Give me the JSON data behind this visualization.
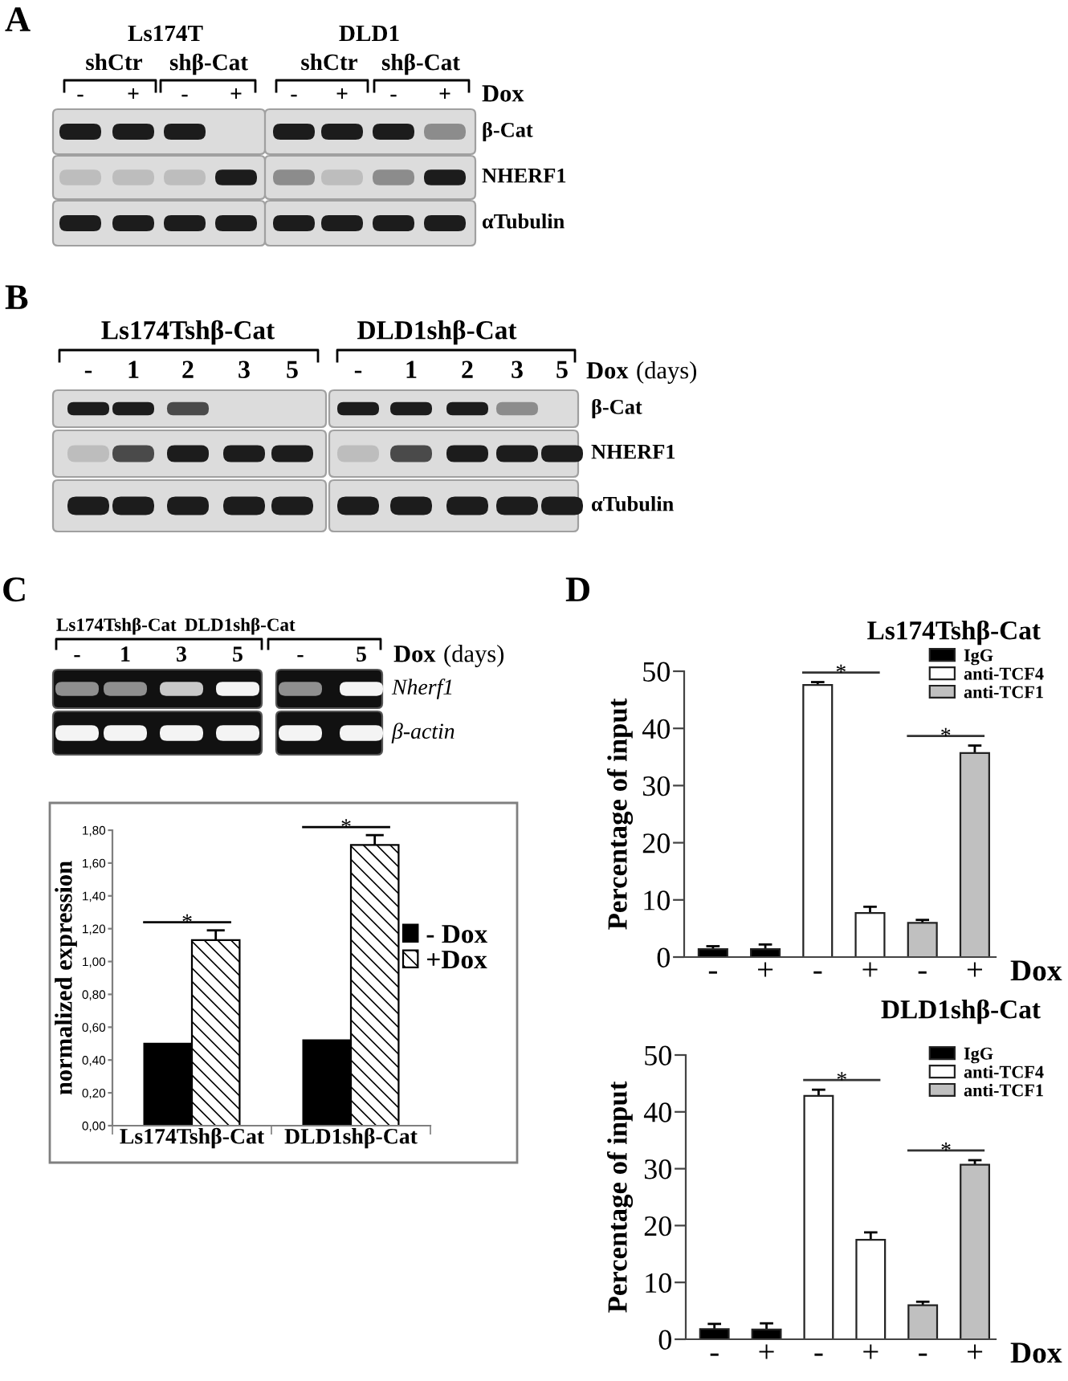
{
  "chart_data": [
    {
      "type": "bar",
      "ylabel": "normalized expression",
      "categories": [
        "Ls174Tshβ-Cat",
        "DLD1shβ-Cat"
      ],
      "series": [
        {
          "name": "- Dox",
          "color": "#000000",
          "values": [
            0.5,
            0.52
          ]
        },
        {
          "name": "+Dox",
          "color": "#000000",
          "values": [
            1.13,
            1.71
          ],
          "errors": [
            0.06,
            0.06
          ]
        }
      ],
      "ylim": [
        0,
        1.8
      ],
      "yticks": [
        {
          "value": 0,
          "label": "0,00"
        },
        {
          "value": 0.2,
          "label": "0,20"
        },
        {
          "value": 0.4,
          "label": "0,40"
        },
        {
          "value": 0.6,
          "label": "0,60"
        },
        {
          "value": 0.8,
          "label": "0,80"
        },
        {
          "value": 1.0,
          "label": "1,00"
        },
        {
          "value": 1.2,
          "label": "1,20"
        },
        {
          "value": 1.4,
          "label": "1,40"
        },
        {
          "value": 1.6,
          "label": "1,60"
        },
        {
          "value": 1.8,
          "label": "1,80"
        }
      ],
      "legend": "right",
      "annotations": [
        "A",
        "Ls174T",
        "DLD1",
        "shCtr",
        "shβ-Cat",
        "shCtr",
        "shβ-Cat",
        "-",
        "+",
        "-",
        "+",
        "-",
        "+",
        "-",
        "+",
        "Dox",
        "β-Cat",
        "NHERF1",
        "αTubulin",
        "B",
        "Ls174Tshβ-Cat",
        "DLD1shβ-Cat",
        "-",
        "1",
        "2",
        "3",
        "5",
        "-",
        "1",
        "2",
        "3",
        "5",
        "Dox",
        "(days)",
        "β-Cat",
        "NHERF1",
        "αTubulin",
        "C",
        "Ls174Tshβ-Cat",
        "DLD1shβ-Cat",
        "-",
        "1",
        "3",
        "5",
        "-",
        "5",
        "Dox",
        "(days)",
        "Nherf1",
        "β-actin",
        "*",
        "*"
      ]
    },
    {
      "type": "bar",
      "title": "Ls174Tshβ-Cat",
      "ylabel": "Percentage of input",
      "xlabel": "Dox",
      "categories": [
        "-",
        "+",
        "-",
        "+",
        "-",
        "+"
      ],
      "series": [
        {
          "name": "IgG",
          "color": "#000000",
          "values": [
            1.4,
            1.4,
            null,
            null,
            null,
            null
          ],
          "errors": [
            0.5,
            0.8,
            null,
            null,
            null,
            null
          ]
        },
        {
          "name": "anti-TCF4",
          "color": "#ffffff",
          "values": [
            null,
            null,
            47.6,
            7.7,
            null,
            null
          ],
          "errors": [
            null,
            null,
            0.5,
            1.1,
            null,
            null
          ]
        },
        {
          "name": "anti-TCF1",
          "color": "#c0c0c0",
          "values": [
            null,
            null,
            null,
            null,
            6.0,
            35.7
          ],
          "errors": [
            null,
            null,
            null,
            null,
            0.5,
            1.3
          ]
        }
      ],
      "ylim": [
        0,
        50
      ],
      "yticks": [
        0,
        10,
        20,
        30,
        40,
        50
      ],
      "legend": "top right",
      "annotations": [
        "D",
        "*",
        "*"
      ]
    },
    {
      "type": "bar",
      "title": "DLD1shβ-Cat",
      "ylabel": "Percentage of input",
      "xlabel": "Dox",
      "categories": [
        "-",
        "+",
        "-",
        "+",
        "-",
        "+"
      ],
      "series": [
        {
          "name": "IgG",
          "color": "#000000",
          "values": [
            1.8,
            1.7,
            null,
            null,
            null,
            null
          ],
          "errors": [
            0.9,
            1.1,
            null,
            null,
            null,
            null
          ]
        },
        {
          "name": "anti-TCF4",
          "color": "#ffffff",
          "values": [
            null,
            null,
            42.8,
            17.5,
            null,
            null
          ],
          "errors": [
            null,
            null,
            1.1,
            1.3,
            null,
            null
          ]
        },
        {
          "name": "anti-TCF1",
          "color": "#c0c0c0",
          "values": [
            null,
            null,
            null,
            null,
            6.0,
            30.7
          ],
          "errors": [
            null,
            null,
            null,
            null,
            0.6,
            0.8
          ]
        }
      ],
      "ylim": [
        0,
        50
      ],
      "yticks": [
        0,
        10,
        20,
        30,
        40,
        50
      ],
      "legend": "top right",
      "annotations": [
        "*",
        "*"
      ]
    }
  ]
}
